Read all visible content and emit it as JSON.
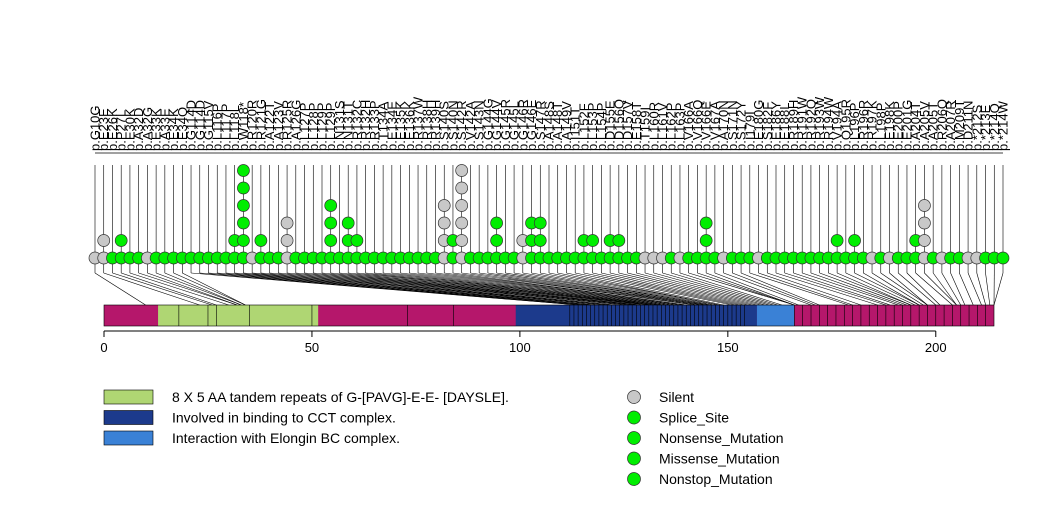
{
  "chart_data": {
    "type": "lollipop",
    "title": "",
    "xlabel": "",
    "ylabel": "",
    "xlim": [
      0,
      214
    ],
    "x_ticks": [
      0,
      50,
      100,
      150,
      200
    ],
    "protein_length": 214,
    "base_color": "#b5176b",
    "domains": [
      {
        "start": 13,
        "end": 51.5,
        "color": "#afd673",
        "legend": "8 X 5 AA tandem repeats of G-[PAVG]-E-E- [DAYSLE]."
      },
      {
        "start": 99,
        "end": 157,
        "color": "#1c3a8c",
        "legend": "Involved in binding to CCT complex."
      },
      {
        "start": 157,
        "end": 166,
        "color": "#3a81d6",
        "legend": "Interaction with Elongin BC complex."
      }
    ],
    "domain_dividers": [
      18,
      25,
      27,
      35,
      50,
      73,
      84,
      112,
      113,
      114,
      115,
      116,
      117,
      118,
      119,
      120,
      121,
      122,
      123,
      124,
      125,
      126,
      127,
      128,
      129,
      130,
      131,
      132,
      133,
      134,
      135,
      136,
      137,
      138,
      139,
      140,
      141,
      142,
      143,
      144,
      145,
      146,
      147,
      148,
      149,
      150,
      151,
      152,
      153,
      154,
      166,
      168,
      170,
      172,
      174,
      176,
      178,
      180,
      182,
      184,
      186,
      188,
      190,
      192,
      194,
      196,
      198,
      200,
      202,
      204,
      206,
      208,
      210,
      212
    ],
    "mutations": [
      {
        "label": "p.G10G",
        "pos": 10,
        "type": "Silent",
        "count": 1
      },
      {
        "label": "p.E23E",
        "pos": 23,
        "type": "Silent",
        "count": 2
      },
      {
        "label": "p.E26K",
        "pos": 26,
        "type": "Missense_Mutation",
        "count": 1
      },
      {
        "label": "p.P27L",
        "pos": 27,
        "type": "Missense_Mutation",
        "count": 2
      },
      {
        "label": "p.E30K",
        "pos": 30,
        "type": "Missense_Mutation",
        "count": 1
      },
      {
        "label": "p.A32D",
        "pos": 32,
        "type": "Missense_Mutation",
        "count": 1
      },
      {
        "label": "p.A32G",
        "pos": 32,
        "type": "Silent",
        "count": 1
      },
      {
        "label": "p.E33K",
        "pos": 33,
        "type": "Missense_Mutation",
        "count": 1
      },
      {
        "label": "p.A33E",
        "pos": 33,
        "type": "Missense_Mutation",
        "count": 1
      },
      {
        "label": "p.E34K",
        "pos": 34,
        "type": "Missense_Mutation",
        "count": 1
      },
      {
        "label": "p.E34Q",
        "pos": 34,
        "type": "Missense_Mutation",
        "count": 1
      },
      {
        "label": "p.G114D",
        "pos": 114,
        "type": "Missense_Mutation",
        "count": 1
      },
      {
        "label": "p.G114D",
        "pos": 114,
        "type": "Missense_Mutation",
        "count": 1
      },
      {
        "label": "p.G115V",
        "pos": 115,
        "type": "Missense_Mutation",
        "count": 1
      },
      {
        "label": "p.L116P",
        "pos": 116,
        "type": "Missense_Mutation",
        "count": 1
      },
      {
        "label": "p.L117P",
        "pos": 117,
        "type": "Missense_Mutation",
        "count": 1
      },
      {
        "label": "p.L118L",
        "pos": 118,
        "type": "Missense_Mutation",
        "count": 2
      },
      {
        "label": "p.W118*",
        "pos": 118,
        "type": "Nonsense_Mutation",
        "count": 6
      },
      {
        "label": "p.R120R",
        "pos": 120,
        "type": "Silent",
        "count": 1
      },
      {
        "label": "p.R121G",
        "pos": 121,
        "type": "Missense_Mutation",
        "count": 2
      },
      {
        "label": "p.A122T",
        "pos": 122,
        "type": "Missense_Mutation",
        "count": 1
      },
      {
        "label": "p.A123V",
        "pos": 123,
        "type": "Missense_Mutation",
        "count": 1
      },
      {
        "label": "p.R125R",
        "pos": 125,
        "type": "Silent",
        "count": 3
      },
      {
        "label": "p.A126G",
        "pos": 126,
        "type": "Missense_Mutation",
        "count": 1
      },
      {
        "label": "p.L127P",
        "pos": 127,
        "type": "Missense_Mutation",
        "count": 1
      },
      {
        "label": "p.L128P",
        "pos": 128,
        "type": "Missense_Mutation",
        "count": 1
      },
      {
        "label": "p.L129P",
        "pos": 129,
        "type": "Missense_Mutation",
        "count": 1
      },
      {
        "label": "p.L129P",
        "pos": 129,
        "type": "Missense_Mutation",
        "count": 4
      },
      {
        "label": "p.N131S",
        "pos": 131,
        "type": "Missense_Mutation",
        "count": 1
      },
      {
        "label": "p.N131T",
        "pos": 131,
        "type": "Missense_Mutation",
        "count": 3
      },
      {
        "label": "p.R132C",
        "pos": 132,
        "type": "Missense_Mutation",
        "count": 2
      },
      {
        "label": "p.R132H",
        "pos": 132,
        "type": "Missense_Mutation",
        "count": 1
      },
      {
        "label": "p.R133P",
        "pos": 133,
        "type": "Missense_Mutation",
        "count": 1
      },
      {
        "label": "p.T134A",
        "pos": 134,
        "type": "Missense_Mutation",
        "count": 1
      },
      {
        "label": "p.E134E",
        "pos": 134,
        "type": "Missense_Mutation",
        "count": 1
      },
      {
        "label": "p.E135K",
        "pos": 135,
        "type": "Missense_Mutation",
        "count": 1
      },
      {
        "label": "p.E136K",
        "pos": 136,
        "type": "Missense_Mutation",
        "count": 1
      },
      {
        "label": "p.R137W",
        "pos": 137,
        "type": "Missense_Mutation",
        "count": 1
      },
      {
        "label": "p.R138H",
        "pos": 138,
        "type": "Missense_Mutation",
        "count": 1
      },
      {
        "label": "p.R139H",
        "pos": 139,
        "type": "Missense_Mutation",
        "count": 1
      },
      {
        "label": "p.S140S",
        "pos": 140,
        "type": "Silent",
        "count": 4
      },
      {
        "label": "p.S140N",
        "pos": 140,
        "type": "Missense_Mutation",
        "count": 2
      },
      {
        "label": "p.S142R",
        "pos": 142,
        "type": "Silent",
        "count": 6
      },
      {
        "label": "p.V142A",
        "pos": 142,
        "type": "Missense_Mutation",
        "count": 1
      },
      {
        "label": "p.S143N",
        "pos": 143,
        "type": "Missense_Mutation",
        "count": 1
      },
      {
        "label": "p.G144G",
        "pos": 144,
        "type": "Missense_Mutation",
        "count": 1
      },
      {
        "label": "p.G144V",
        "pos": 144,
        "type": "Missense_Mutation",
        "count": 3
      },
      {
        "label": "p.G145R",
        "pos": 145,
        "type": "Missense_Mutation",
        "count": 1
      },
      {
        "label": "p.G145L",
        "pos": 145,
        "type": "Missense_Mutation",
        "count": 1
      },
      {
        "label": "p.G146R",
        "pos": 146,
        "type": "Silent",
        "count": 2
      },
      {
        "label": "p.G146E",
        "pos": 146,
        "type": "Missense_Mutation",
        "count": 3
      },
      {
        "label": "p.S147R",
        "pos": 147,
        "type": "Missense_Mutation",
        "count": 3
      },
      {
        "label": "p.A148S",
        "pos": 148,
        "type": "Missense_Mutation",
        "count": 1
      },
      {
        "label": "p.A148T",
        "pos": 148,
        "type": "Missense_Mutation",
        "count": 1
      },
      {
        "label": "p.A149V",
        "pos": 149,
        "type": "Missense_Mutation",
        "count": 1
      },
      {
        "label": "p.I151T",
        "pos": 151,
        "type": "Missense_Mutation",
        "count": 1
      },
      {
        "label": "p.L152F",
        "pos": 152,
        "type": "Missense_Mutation",
        "count": 2
      },
      {
        "label": "p.L153P",
        "pos": 153,
        "type": "Missense_Mutation",
        "count": 2
      },
      {
        "label": "p.L154P",
        "pos": 154,
        "type": "Missense_Mutation",
        "count": 1
      },
      {
        "label": "p.D155E",
        "pos": 155,
        "type": "Missense_Mutation",
        "count": 2
      },
      {
        "label": "p.D156Q",
        "pos": 156,
        "type": "Missense_Mutation",
        "count": 2
      },
      {
        "label": "p.D157V",
        "pos": 157,
        "type": "Missense_Mutation",
        "count": 1
      },
      {
        "label": "p.E158T",
        "pos": 158,
        "type": "Missense_Mutation",
        "count": 1
      },
      {
        "label": "p.T159I",
        "pos": 159,
        "type": "Silent",
        "count": 1
      },
      {
        "label": "p.L160R",
        "pos": 160,
        "type": "Silent",
        "count": 1
      },
      {
        "label": "p.L161V",
        "pos": 161,
        "type": "Silent",
        "count": 1
      },
      {
        "label": "p.L162P",
        "pos": 162,
        "type": "Missense_Mutation",
        "count": 1
      },
      {
        "label": "p.L163P",
        "pos": 163,
        "type": "Silent",
        "count": 1
      },
      {
        "label": "p.V166A",
        "pos": 166,
        "type": "Missense_Mutation",
        "count": 1
      },
      {
        "label": "p.V166Q",
        "pos": 166,
        "type": "Missense_Mutation",
        "count": 1
      },
      {
        "label": "p.V166E",
        "pos": 166,
        "type": "Missense_Mutation",
        "count": 3
      },
      {
        "label": "p.V167A",
        "pos": 167,
        "type": "Missense_Mutation",
        "count": 1
      },
      {
        "label": "p.A170N",
        "pos": 170,
        "type": "Silent",
        "count": 1
      },
      {
        "label": "p.S171N",
        "pos": 171,
        "type": "Missense_Mutation",
        "count": 1
      },
      {
        "label": "p.S172Y",
        "pos": 172,
        "type": "Missense_Mutation",
        "count": 1
      },
      {
        "label": "p.I179I",
        "pos": 179,
        "type": "Missense_Mutation",
        "count": 1
      },
      {
        "label": "p.E180G",
        "pos": 180,
        "type": "Silent",
        "count": 1
      },
      {
        "label": "p.S182F",
        "pos": 182,
        "type": "Missense_Mutation",
        "count": 1
      },
      {
        "label": "p.E186Y",
        "pos": 186,
        "type": "Missense_Mutation",
        "count": 1
      },
      {
        "label": "p.E188L",
        "pos": 188,
        "type": "Missense_Mutation",
        "count": 1
      },
      {
        "label": "p.R189H",
        "pos": 189,
        "type": "Missense_Mutation",
        "count": 1
      },
      {
        "label": "p.R191W",
        "pos": 191,
        "type": "Missense_Mutation",
        "count": 1
      },
      {
        "label": "p.R192Q",
        "pos": 192,
        "type": "Missense_Mutation",
        "count": 1
      },
      {
        "label": "p.R193W",
        "pos": 193,
        "type": "Missense_Mutation",
        "count": 1
      },
      {
        "label": "p.R194W",
        "pos": 194,
        "type": "Missense_Mutation",
        "count": 1
      },
      {
        "label": "p.V194A",
        "pos": 194,
        "type": "Missense_Mutation",
        "count": 2
      },
      {
        "label": "p.Q195R",
        "pos": 195,
        "type": "Missense_Mutation",
        "count": 1
      },
      {
        "label": "p.L196P",
        "pos": 196,
        "type": "Missense_Mutation",
        "count": 2
      },
      {
        "label": "p.R196R",
        "pos": 196,
        "type": "Missense_Mutation",
        "count": 1
      },
      {
        "label": "p.R197K",
        "pos": 197,
        "type": "Silent",
        "count": 1
      },
      {
        "label": "p.L198P",
        "pos": 198,
        "type": "Missense_Mutation",
        "count": 1
      },
      {
        "label": "p.E198K",
        "pos": 198,
        "type": "Silent",
        "count": 1
      },
      {
        "label": "p.E200P",
        "pos": 200,
        "type": "Missense_Mutation",
        "count": 1
      },
      {
        "label": "p.E201G",
        "pos": 201,
        "type": "Missense_Mutation",
        "count": 1
      },
      {
        "label": "p.A204T",
        "pos": 204,
        "type": "Missense_Mutation",
        "count": 2
      },
      {
        "label": "p.A205V",
        "pos": 205,
        "type": "Silent",
        "count": 4
      },
      {
        "label": "p.A205T",
        "pos": 205,
        "type": "Missense_Mutation",
        "count": 1
      },
      {
        "label": "p.R206Q",
        "pos": 206,
        "type": "Silent",
        "count": 1
      },
      {
        "label": "p.A207R",
        "pos": 207,
        "type": "Missense_Mutation",
        "count": 1
      },
      {
        "label": "p.M209T",
        "pos": 209,
        "type": "Missense_Mutation",
        "count": 1
      },
      {
        "label": "p.D211N",
        "pos": 211,
        "type": "Silent",
        "count": 1
      },
      {
        "label": "p.*212S",
        "pos": 212,
        "type": "Silent",
        "count": 1
      },
      {
        "label": "p.*213E",
        "pos": 213,
        "type": "Missense_Mutation",
        "count": 1
      },
      {
        "label": "p.*214Q",
        "pos": 214,
        "type": "Nonstop_Mutation",
        "count": 1
      },
      {
        "label": "p.*214W",
        "pos": 214,
        "type": "Nonstop_Mutation",
        "count": 1
      }
    ],
    "legend_domains": [
      {
        "label": "8 X 5 AA tandem repeats of G-[PAVG]-E-E- [DAYSLE].",
        "color": "#afd673"
      },
      {
        "label": "Involved in binding to CCT complex.",
        "color": "#1c3a8c"
      },
      {
        "label": "Interaction with Elongin BC complex.",
        "color": "#3a81d6"
      }
    ],
    "legend_mutations": [
      {
        "label": "Silent",
        "color": "#c8c8c8"
      },
      {
        "label": "Splice_Site",
        "color": "#00ee00"
      },
      {
        "label": "Nonsense_Mutation",
        "color": "#00ee00"
      },
      {
        "label": "Missense_Mutation",
        "color": "#00ee00"
      },
      {
        "label": "Nonstop_Mutation",
        "color": "#00ee00"
      }
    ],
    "type_colors": {
      "Silent": "#c8c8c8",
      "Splice_Site": "#00ee00",
      "Nonsense_Mutation": "#00ee00",
      "Missense_Mutation": "#00ee00",
      "Nonstop_Mutation": "#00ee00"
    }
  }
}
